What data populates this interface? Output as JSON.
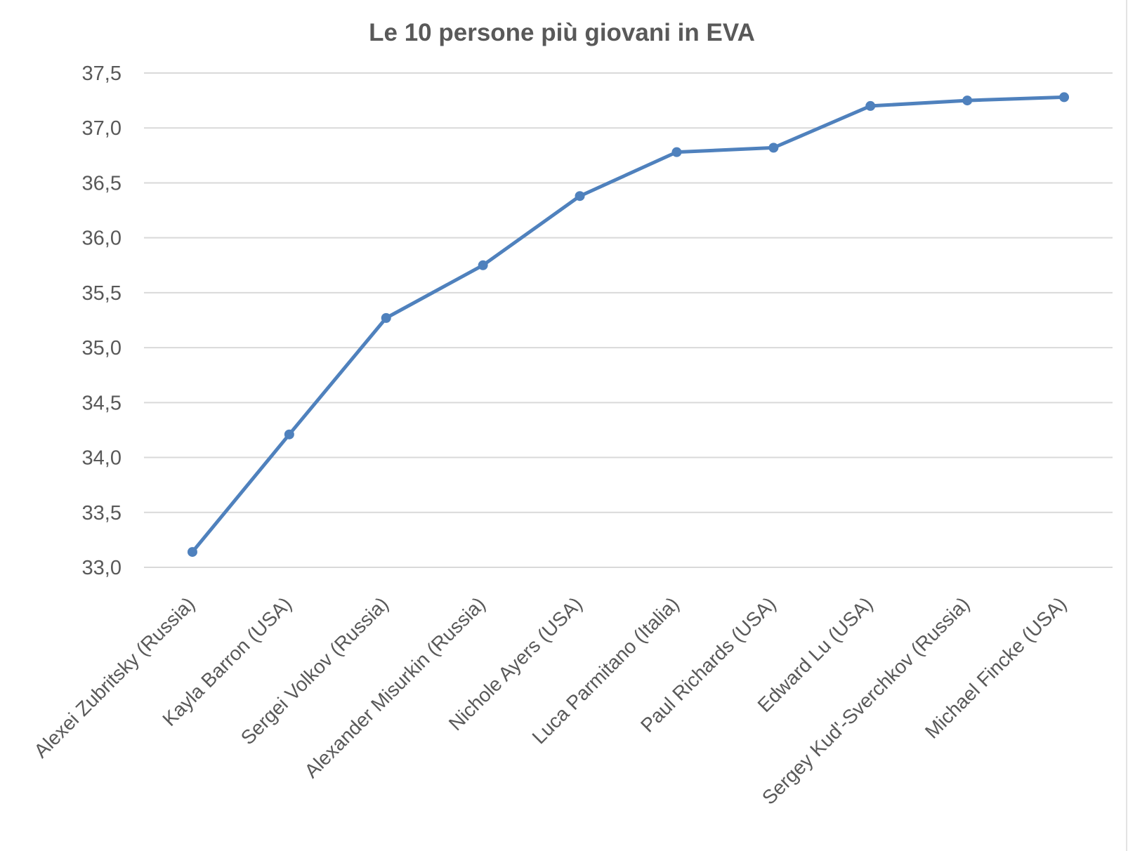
{
  "title": "Le 10 persone più giovani in EVA",
  "chart_data": {
    "type": "line",
    "title": "Le 10 persone più giovani in EVA",
    "categories": [
      "Alexei Zubritsky (Russia)",
      "Kayla Barron (USA)",
      "Sergei Volkov (Russia)",
      "Alexander Misurkin (Russia)",
      "Nichole Ayers (USA)",
      "Luca Parmitano (Italia)",
      "Paul Richards (USA)",
      "Edward Lu (USA)",
      "Sergey Kud'-Sverchkov (Russia)",
      "Michael Fincke (USA)"
    ],
    "values": [
      33.14,
      34.21,
      35.27,
      35.75,
      36.38,
      36.78,
      36.82,
      37.2,
      37.25,
      37.28
    ],
    "ylim": [
      33.0,
      37.5
    ],
    "ytick_step": 0.5,
    "ytick_labels": [
      "37,5",
      "37,0",
      "36,5",
      "36,0",
      "35,5",
      "35,0",
      "34,5",
      "34,0",
      "33,5",
      "33,0"
    ],
    "xlabel": "",
    "ylabel": "",
    "grid": true,
    "legend": false,
    "decimal_separator": ",",
    "x_label_rotation_deg": -45,
    "colors": {
      "line": "#4f81bd",
      "marker": "#4f81bd",
      "gridline": "#d9d9d9",
      "text": "#595959"
    }
  }
}
